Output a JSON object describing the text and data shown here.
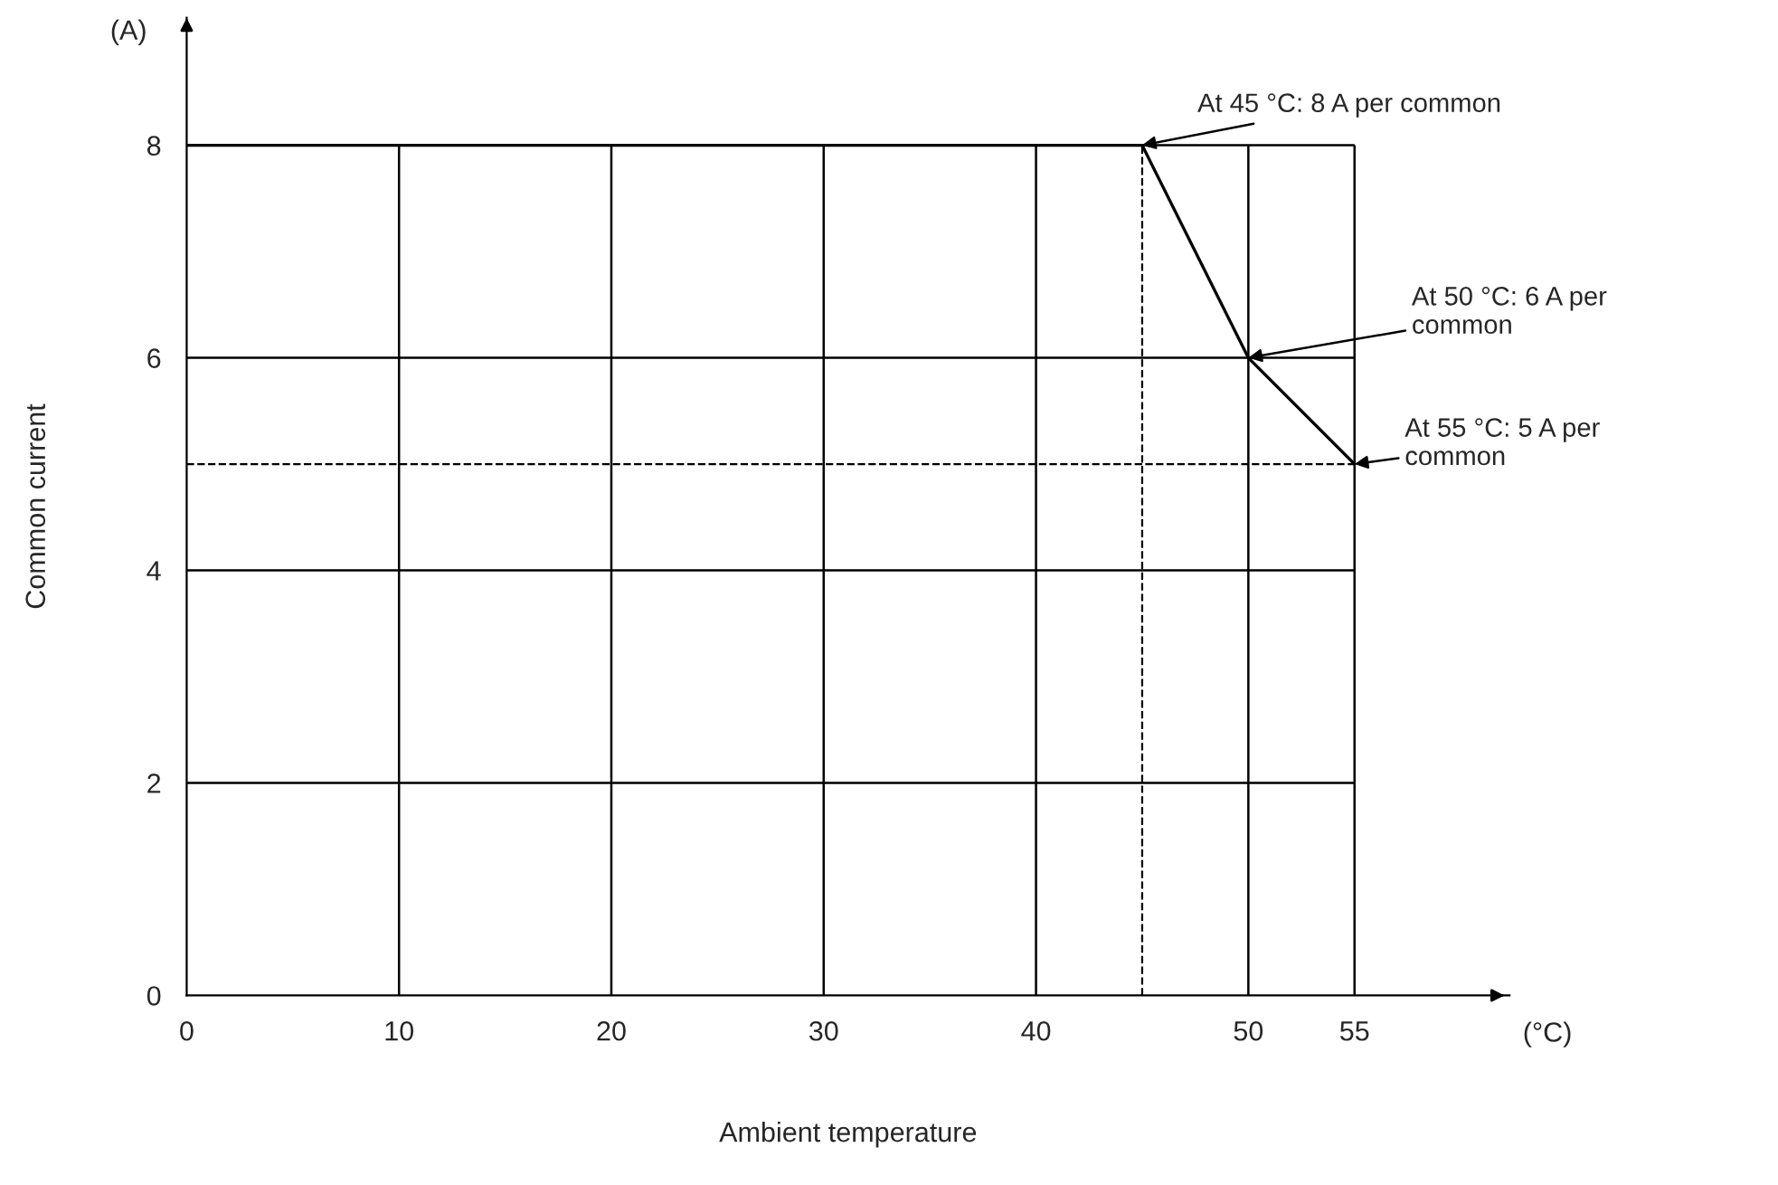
{
  "chart_data": {
    "type": "line",
    "xlabel": "Ambient temperature",
    "ylabel": "Common current",
    "x": [
      0,
      45,
      50,
      55
    ],
    "series": [
      {
        "color": "#000000",
        "values": [
          8,
          8,
          6,
          5
        ]
      }
    ],
    "xlim": [
      0,
      62.3
    ],
    "ylim": [
      0,
      9.2
    ],
    "xticks": [
      0,
      10,
      20,
      30,
      40,
      50,
      55
    ],
    "yticks": [
      0,
      2,
      4,
      6,
      8
    ],
    "grid": true,
    "line_style": "solid",
    "marker": "none",
    "ref_lines": [
      {
        "axis": "x",
        "value": 45,
        "color": "#000000",
        "line_style": "dashed"
      },
      {
        "axis": "y",
        "value": 5,
        "color": "#000000",
        "line_style": "dashed"
      }
    ],
    "annotations": [
      {
        "text": "At 45 °C: 8 A per common",
        "x": 45,
        "y": 8
      },
      {
        "text": "At 50 °C: 6 A per\ncommon",
        "x": 50,
        "y": 6
      },
      {
        "text": "At 55 °C: 5 A per\ncommon",
        "x": 55,
        "y": 5
      },
      "(A)",
      "(°C)"
    ]
  }
}
